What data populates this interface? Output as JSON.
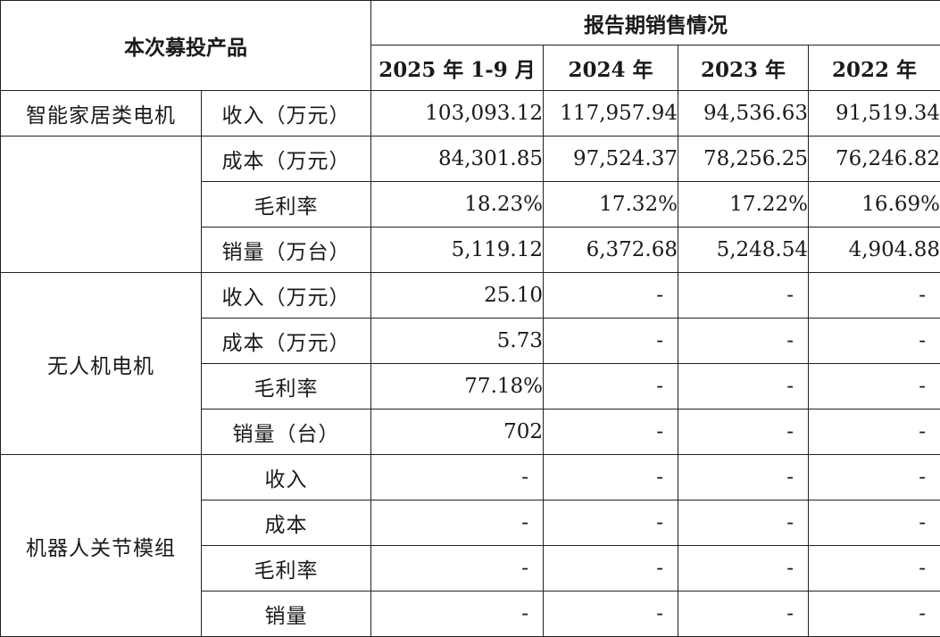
{
  "header": {
    "product_col": "本次募投产品",
    "period_group": "报告期销售情况",
    "periods": [
      "2025 年 1-9 月",
      "2024 年",
      "2023 年",
      "2022 年"
    ]
  },
  "rows": [
    {
      "product": "智能家居类电机",
      "metric": "收入（万元）",
      "values": [
        "103,093.12",
        "117,957.94",
        "94,536.63",
        "91,519.34"
      ]
    },
    {
      "product": "",
      "metric": "成本（万元）",
      "values": [
        "84,301.85",
        "97,524.37",
        "78,256.25",
        "76,246.82"
      ]
    },
    {
      "product": "",
      "metric": "毛利率",
      "values": [
        "18.23%",
        "17.32%",
        "17.22%",
        "16.69%"
      ]
    },
    {
      "product": "",
      "metric": "销量（万台）",
      "values": [
        "5,119.12",
        "6,372.68",
        "5,248.54",
        "4,904.88"
      ]
    },
    {
      "product": "无人机电机",
      "metric": "收入（万元）",
      "values": [
        "25.10",
        "-",
        "-",
        "-"
      ]
    },
    {
      "product": "",
      "metric": "成本（万元）",
      "values": [
        "5.73",
        "-",
        "-",
        "-"
      ]
    },
    {
      "product": "",
      "metric": "毛利率",
      "values": [
        "77.18%",
        "-",
        "-",
        "-"
      ]
    },
    {
      "product": "",
      "metric": "销量（台）",
      "values": [
        "702",
        "-",
        "-",
        "-"
      ]
    },
    {
      "product": "机器人关节模组",
      "metric": "收入",
      "values": [
        "-",
        "-",
        "-",
        "-"
      ]
    },
    {
      "product": "",
      "metric": "成本",
      "values": [
        "-",
        "-",
        "-",
        "-"
      ]
    },
    {
      "product": "",
      "metric": "毛利率",
      "values": [
        "-",
        "-",
        "-",
        "-"
      ]
    },
    {
      "product": "",
      "metric": "销量",
      "values": [
        "-",
        "-",
        "-",
        "-"
      ]
    }
  ]
}
